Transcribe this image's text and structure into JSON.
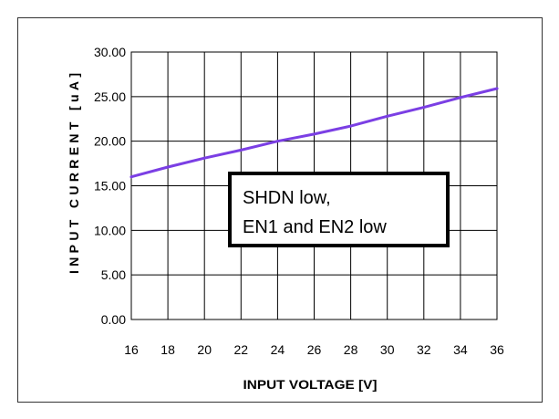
{
  "chart_data": {
    "type": "line",
    "title": "",
    "xlabel": "INPUT VOLTAGE [V]",
    "ylabel": "INPUT CURRENT [uA]",
    "xlim": [
      16,
      36
    ],
    "ylim": [
      0,
      30
    ],
    "x_ticks": [
      "16",
      "18",
      "20",
      "22",
      "24",
      "26",
      "28",
      "30",
      "32",
      "34",
      "36"
    ],
    "y_ticks": [
      "0.00",
      "5.00",
      "10.00",
      "15.00",
      "20.00",
      "25.00",
      "30.00"
    ],
    "grid": true,
    "series": [
      {
        "color": "#7b3fe4",
        "x": [
          16,
          18,
          20,
          22,
          24,
          26,
          28,
          30,
          32,
          34,
          36
        ],
        "y": [
          16.0,
          17.1,
          18.1,
          19.0,
          20.0,
          20.8,
          21.7,
          22.8,
          23.8,
          24.9,
          25.9
        ]
      }
    ],
    "annotation": {
      "line1": "SHDN low,",
      "line2": "EN1 and EN2 low"
    }
  }
}
